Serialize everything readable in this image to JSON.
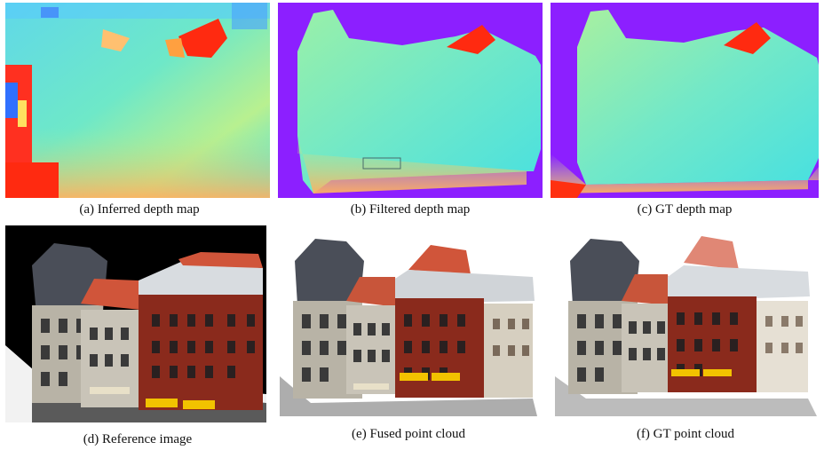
{
  "figure": {
    "panels": [
      {
        "id": "a",
        "caption": "(a) Inferred depth map"
      },
      {
        "id": "b",
        "caption": "(b) Filtered depth map"
      },
      {
        "id": "c",
        "caption": "(c) GT depth map"
      },
      {
        "id": "d",
        "caption": "(d) Reference image"
      },
      {
        "id": "e",
        "caption": "(e) Fused point cloud"
      },
      {
        "id": "f",
        "caption": "(f) GT point cloud"
      }
    ]
  },
  "colors": {
    "depth_near": "#ff2000",
    "depth_mid": "#8cf0a0",
    "depth_far": "#40e0d8",
    "mask_background": "#8c1fff",
    "brick": "#8a2a1c",
    "roof_slate": "#4a4e58",
    "roof_tile": "#d0553a",
    "facade_stone": "#b8b3a6",
    "awning_yellow": "#f2c200"
  }
}
